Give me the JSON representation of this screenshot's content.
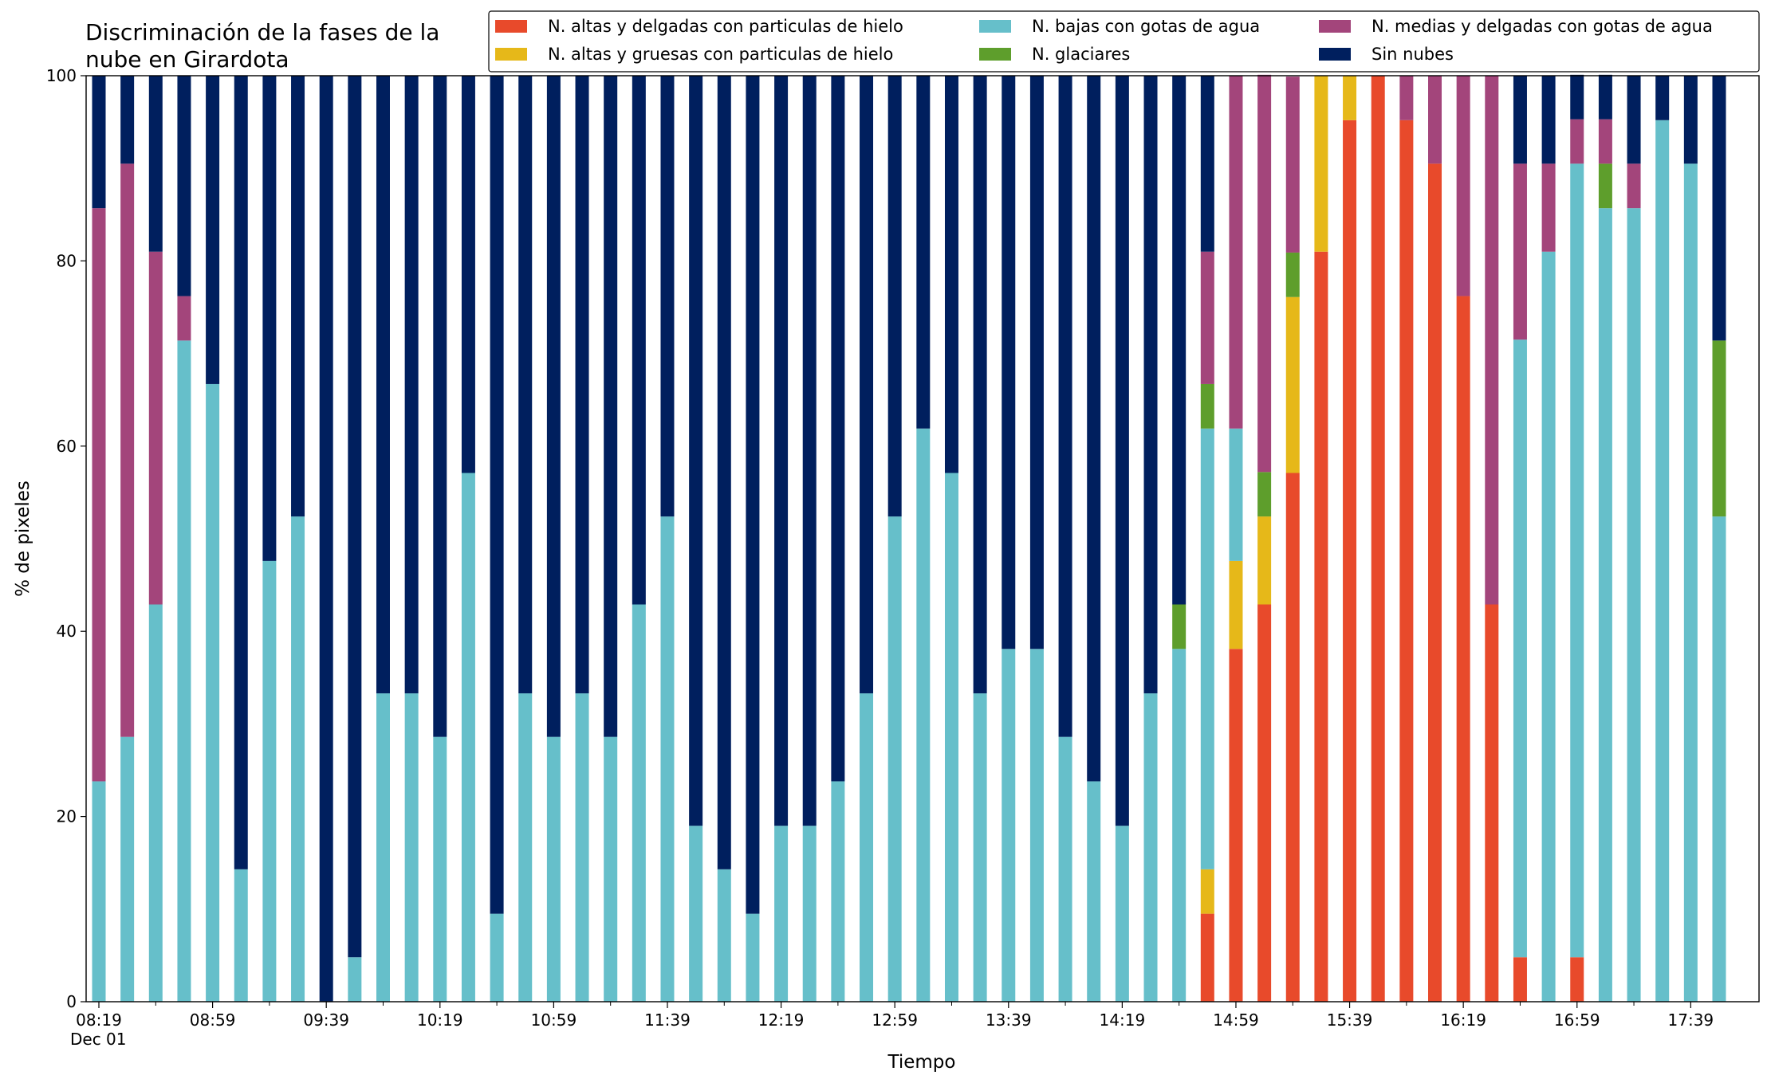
{
  "chart_data": {
    "type": "stacked_bar",
    "title": [
      "Discriminación de la fases de la",
      "nube en Girardota"
    ],
    "x_label": "Tiempo",
    "y_label": "% de pixeles",
    "date_label": "Dec 01",
    "categories": [
      "08:19",
      null,
      null,
      null,
      "08:59",
      null,
      null,
      null,
      "09:39",
      null,
      null,
      null,
      "10:19",
      null,
      null,
      null,
      "10:59",
      null,
      null,
      null,
      "11:39",
      null,
      null,
      null,
      "12:19",
      null,
      null,
      null,
      "12:59",
      null,
      null,
      null,
      "13:39",
      null,
      null,
      null,
      "14:19",
      null,
      null,
      null,
      "14:59",
      null,
      null,
      null,
      "15:39",
      null,
      null,
      null,
      "16:19",
      null,
      null,
      null,
      "16:59",
      null,
      null,
      null,
      "17:39",
      null
    ],
    "ylim": [
      0,
      100
    ],
    "yticks": [
      0,
      20,
      40,
      60,
      80,
      100
    ],
    "grid": false,
    "legend": "top-right",
    "series": [
      {
        "name": "N. altas y delgadas con particulas de hielo",
        "color": "#e84a2b",
        "values": [
          0,
          0,
          0,
          0,
          0,
          0,
          0,
          0,
          0,
          0,
          0,
          0,
          0,
          0,
          0,
          0,
          0,
          0,
          0,
          0,
          0,
          0,
          0,
          0,
          0,
          0,
          0,
          0,
          0,
          0,
          0,
          0,
          0,
          0,
          0,
          0,
          0,
          0,
          0,
          9.5,
          38.1,
          42.9,
          57.1,
          81.0,
          95.2,
          100,
          95.2,
          90.5,
          76.2,
          42.9,
          4.8,
          0,
          4.8,
          0,
          0,
          0,
          0,
          0
        ]
      },
      {
        "name": "N. altas y gruesas con particulas de hielo",
        "color": "#e6b819",
        "values": [
          0,
          0,
          0,
          0,
          0,
          0,
          0,
          0,
          0,
          0,
          0,
          0,
          0,
          0,
          0,
          0,
          0,
          0,
          0,
          0,
          0,
          0,
          0,
          0,
          0,
          0,
          0,
          0,
          0,
          0,
          0,
          0,
          0,
          0,
          0,
          0,
          0,
          0,
          0,
          4.8,
          9.5,
          9.5,
          19.0,
          19.0,
          4.8,
          0,
          0,
          0,
          0,
          0,
          0,
          0,
          0,
          0,
          0,
          0,
          0,
          0
        ]
      },
      {
        "name": "N. bajas con gotas de agua",
        "color": "#66bfca",
        "values": [
          23.8,
          28.6,
          42.9,
          71.4,
          66.7,
          14.3,
          47.6,
          52.4,
          0,
          4.8,
          33.3,
          33.3,
          28.6,
          57.1,
          9.5,
          33.3,
          28.6,
          33.3,
          28.6,
          42.9,
          52.4,
          19.0,
          14.3,
          9.5,
          19.0,
          19.0,
          23.8,
          33.3,
          52.4,
          61.9,
          57.1,
          33.3,
          38.1,
          38.1,
          28.6,
          23.8,
          19.0,
          33.3,
          38.1,
          47.6,
          14.3,
          0,
          0,
          0,
          0,
          0,
          0,
          0,
          0,
          0,
          66.7,
          81.0,
          85.7,
          85.7,
          85.7,
          95.2,
          90.5,
          52.4
        ]
      },
      {
        "name": "N. glaciares",
        "color": "#5e9e2c",
        "values": [
          0,
          0,
          0,
          0,
          0,
          0,
          0,
          0,
          0,
          0,
          0,
          0,
          0,
          0,
          0,
          0,
          0,
          0,
          0,
          0,
          0,
          0,
          0,
          0,
          0,
          0,
          0,
          0,
          0,
          0,
          0,
          0,
          0,
          0,
          0,
          0,
          0,
          0,
          4.8,
          4.8,
          0,
          4.8,
          4.8,
          0,
          0,
          0,
          0,
          0,
          0,
          0,
          0,
          0,
          0,
          4.8,
          0,
          0,
          0,
          19.0
        ]
      },
      {
        "name": "N. medias y delgadas con gotas de agua",
        "color": "#a3457b",
        "values": [
          61.9,
          61.9,
          38.1,
          4.8,
          0,
          0,
          0,
          0,
          0,
          0,
          0,
          0,
          0,
          0,
          0,
          0,
          0,
          0,
          0,
          0,
          0,
          0,
          0,
          0,
          0,
          0,
          0,
          0,
          0,
          0,
          0,
          0,
          0,
          0,
          0,
          0,
          0,
          0,
          0,
          14.3,
          38.1,
          42.9,
          19.0,
          0,
          0,
          0,
          4.8,
          9.5,
          23.8,
          57.1,
          19.0,
          9.5,
          4.8,
          4.8,
          4.8,
          0,
          0,
          0
        ]
      },
      {
        "name": "Sin nubes",
        "color": "#001f5e",
        "values": [
          14.3,
          9.5,
          19.0,
          23.8,
          33.3,
          85.7,
          52.4,
          47.6,
          100,
          95.2,
          66.7,
          66.7,
          71.4,
          42.9,
          90.5,
          66.7,
          71.4,
          66.7,
          71.4,
          57.1,
          47.6,
          81.0,
          85.7,
          90.5,
          81.0,
          81.0,
          76.2,
          66.7,
          47.6,
          38.1,
          42.9,
          66.7,
          61.9,
          61.9,
          71.4,
          76.2,
          81.0,
          66.7,
          57.1,
          19.0,
          0,
          0,
          0,
          0,
          0,
          0,
          0,
          0,
          0,
          0,
          9.5,
          9.5,
          4.8,
          4.8,
          9.5,
          4.8,
          9.5,
          28.6
        ]
      }
    ]
  }
}
